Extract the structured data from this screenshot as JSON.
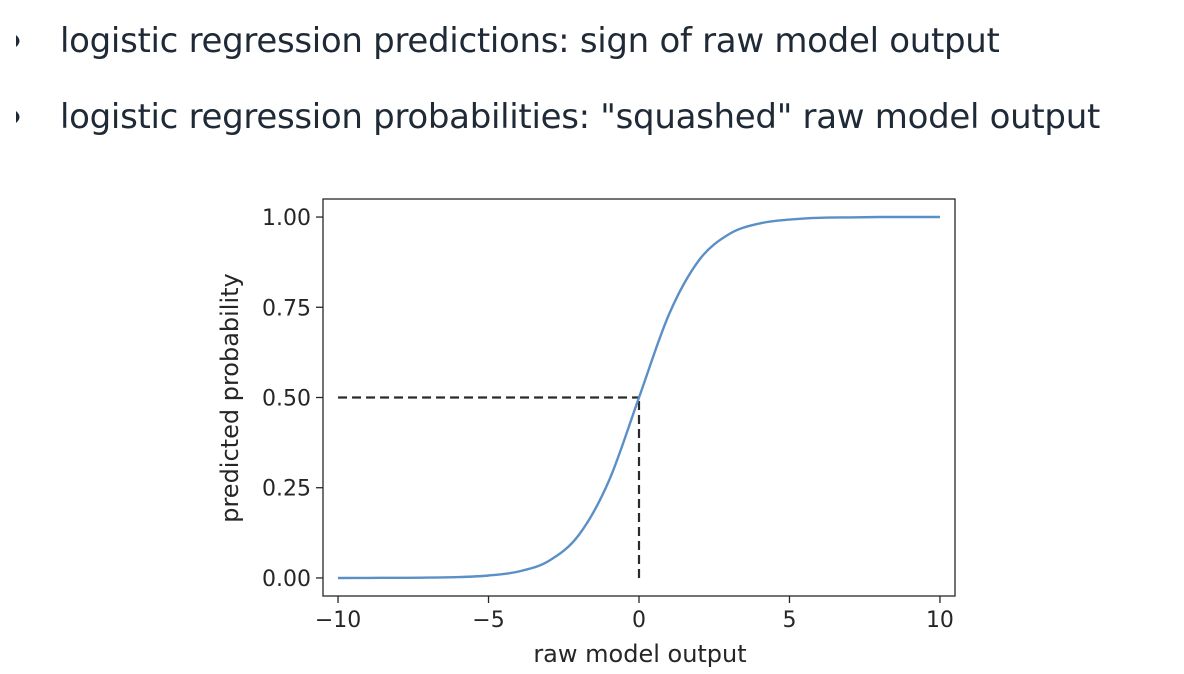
{
  "bullets": [
    {
      "text": "logistic regression predictions: sign of raw model output"
    },
    {
      "text": "logistic regression probabilities: \"squashed\" raw model output"
    }
  ],
  "colors": {
    "curve": "#5b8fc7",
    "reference": "#2b2b2b",
    "text": "#1f2a36",
    "axes": "#262626"
  },
  "chart_data": {
    "type": "line",
    "title": "",
    "xlabel": "raw model output",
    "ylabel": "predicted probability",
    "xlim": [
      -10.5,
      10.5
    ],
    "ylim": [
      -0.05,
      1.05
    ],
    "x_ticks": [
      -10,
      -5,
      0,
      5,
      10
    ],
    "x_tick_labels": [
      "−10",
      "−5",
      "0",
      "5",
      "10"
    ],
    "y_ticks": [
      0,
      0.25,
      0.5,
      0.75,
      1
    ],
    "y_tick_labels": [
      "0.00",
      "0.25",
      "0.50",
      "0.75",
      "1.00"
    ],
    "grid": false,
    "series": [
      {
        "x": [
          -10,
          -9,
          -8,
          -7,
          -6,
          -5,
          -4,
          -3,
          -2,
          -1,
          0,
          1,
          2,
          3,
          4,
          5,
          6,
          7,
          8,
          9,
          10
        ],
        "y": [
          0.0,
          0.0001,
          0.0003,
          0.0009,
          0.0025,
          0.0067,
          0.018,
          0.047,
          0.119,
          0.269,
          0.5,
          0.731,
          0.881,
          0.953,
          0.982,
          0.993,
          0.998,
          0.999,
          1.0,
          1.0,
          1.0
        ]
      }
    ],
    "reference_lines": [
      {
        "x": [
          -10,
          0
        ],
        "y": [
          0.5,
          0.5
        ],
        "style": "dashed"
      },
      {
        "x": [
          0,
          0
        ],
        "y": [
          0,
          0.5
        ],
        "style": "dashed"
      }
    ]
  }
}
